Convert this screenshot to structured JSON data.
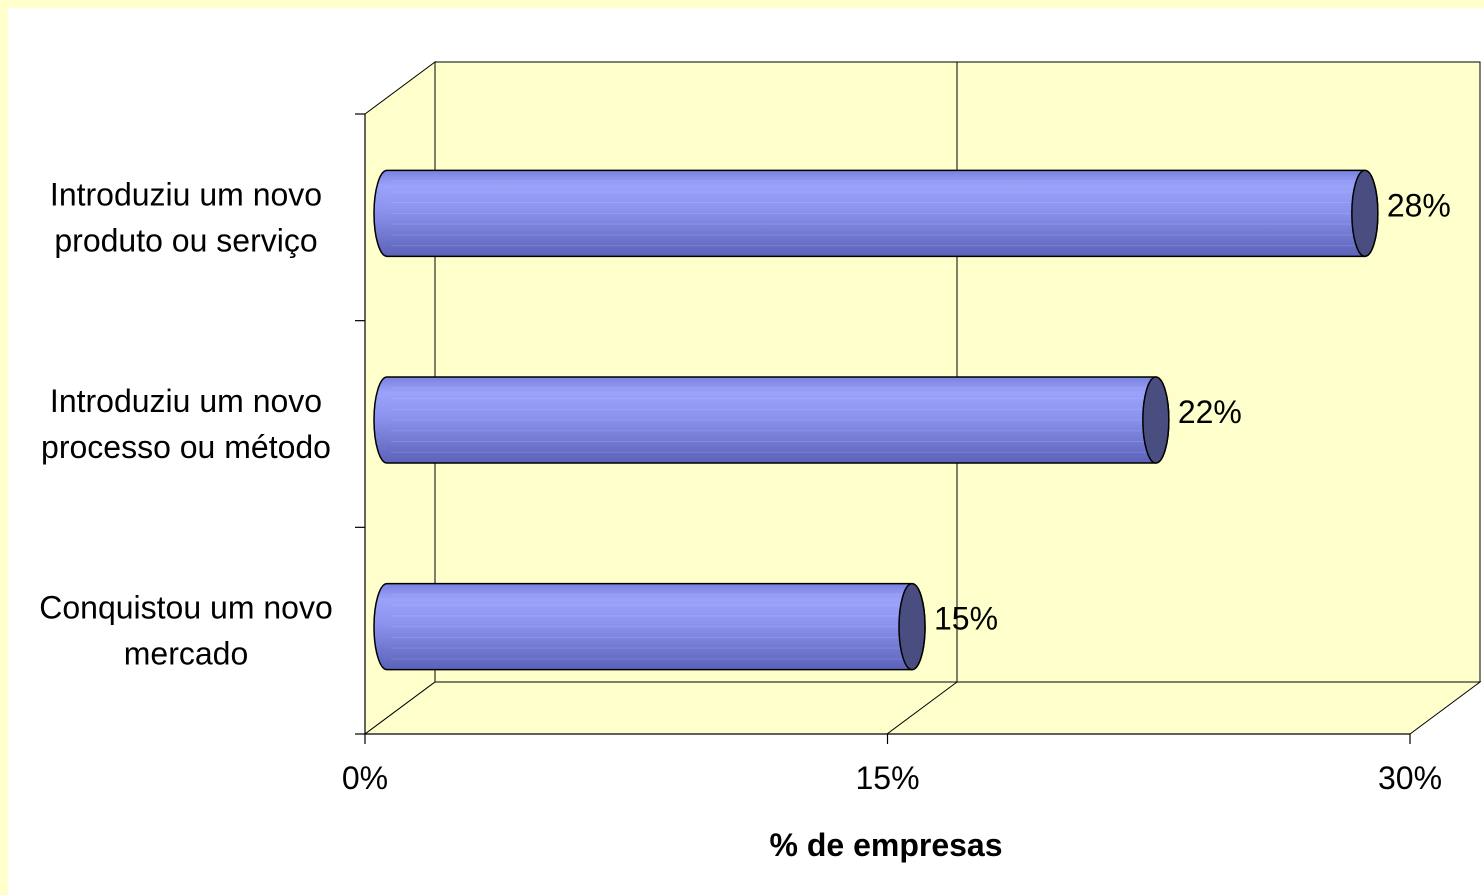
{
  "chart_data": {
    "type": "bar",
    "orientation": "horizontal",
    "style": "3d-cylinder",
    "categories": [
      [
        "Introduziu um novo",
        "produto ou serviço"
      ],
      [
        "Introduziu um novo",
        "processo ou método"
      ],
      [
        "Conquistou um novo",
        "mercado"
      ]
    ],
    "values": [
      28,
      22,
      15
    ],
    "data_labels": [
      "28%",
      "22%",
      "15%"
    ],
    "xlim": [
      0,
      30
    ],
    "xticks": [
      0,
      15,
      30
    ],
    "xtick_labels": [
      "0%",
      "15%",
      "30%"
    ],
    "xlabel": "% de empresas",
    "ylabel": "",
    "title": "",
    "grid": "vertical",
    "legend": "none",
    "colors": {
      "page_background": "#ffffcc",
      "chart_background": "#ffffff",
      "plot_wall": "#ffffcc",
      "bar_fill": "#8c94f0",
      "bar_cap": "#4a4d80",
      "axis_lines": "#000000"
    }
  }
}
